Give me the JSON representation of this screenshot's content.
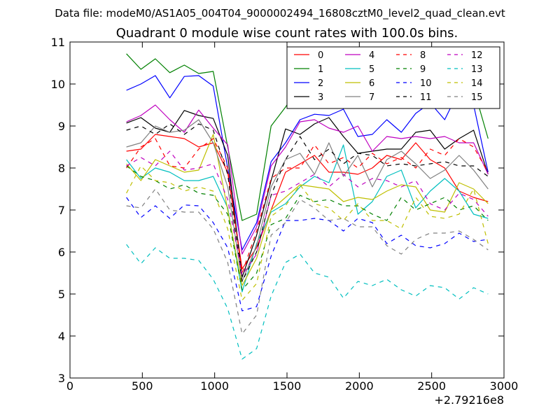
{
  "chart_data": {
    "type": "line",
    "suptitle": "Data file: modeM0/AS1A05_004T04_9000002494_16808cztM0_level2_quad_clean.evt",
    "title": "Quadrant 0 module wise count rates with 100.0s bins.",
    "xlabel": "",
    "ylabel": "",
    "x_offset_label": "+2.79216e8",
    "xlim": [
      0,
      3000
    ],
    "ylim": [
      3,
      11
    ],
    "xticks": [
      0,
      500,
      1000,
      1500,
      2000,
      2500,
      3000
    ],
    "yticks": [
      3,
      4,
      5,
      6,
      7,
      8,
      9,
      10,
      11
    ],
    "grid": false,
    "legend_position": "top-right",
    "x": [
      390,
      490,
      590,
      690,
      790,
      890,
      990,
      1090,
      1190,
      1290,
      1390,
      1490,
      1590,
      1690,
      1790,
      1890,
      1990,
      2090,
      2190,
      2290,
      2390,
      2490,
      2590,
      2690,
      2790,
      2890
    ],
    "series": [
      {
        "name": "0",
        "color": "#ff0000",
        "dash": "solid",
        "values": [
          8.4,
          8.45,
          8.8,
          8.75,
          8.7,
          8.5,
          8.6,
          7.9,
          5.6,
          6.1,
          7.0,
          7.9,
          8.1,
          8.3,
          7.9,
          7.9,
          7.85,
          8.0,
          8.3,
          8.2,
          8.6,
          8.2,
          8.0,
          7.45,
          7.3,
          7.2
        ]
      },
      {
        "name": "1",
        "color": "#008000",
        "dash": "solid",
        "values": [
          10.72,
          10.35,
          10.6,
          10.27,
          10.45,
          10.25,
          10.3,
          8.5,
          6.75,
          6.9,
          9.0,
          9.45,
          9.95,
          9.85,
          10.05,
          10.0,
          9.8,
          9.85,
          9.85,
          9.7,
          9.8,
          9.7,
          9.9,
          9.95,
          9.9,
          8.7
        ]
      },
      {
        "name": "2",
        "color": "#0000ff",
        "dash": "solid",
        "values": [
          9.85,
          10.0,
          10.2,
          9.67,
          10.18,
          10.2,
          9.95,
          8.0,
          6.05,
          6.7,
          8.15,
          8.6,
          9.15,
          9.28,
          9.25,
          9.4,
          8.75,
          8.8,
          9.15,
          8.85,
          9.3,
          9.55,
          9.15,
          9.85,
          9.5,
          7.9
        ]
      },
      {
        "name": "3",
        "color": "#000000",
        "dash": "solid",
        "values": [
          9.07,
          9.2,
          8.95,
          8.85,
          9.37,
          9.25,
          9.18,
          8.3,
          5.4,
          6.4,
          7.7,
          8.93,
          8.8,
          9.05,
          9.2,
          8.75,
          8.35,
          8.4,
          8.45,
          8.45,
          8.85,
          8.9,
          8.45,
          8.7,
          8.9,
          7.85
        ]
      },
      {
        "name": "4",
        "color": "#bf00bf",
        "dash": "solid",
        "values": [
          9.1,
          9.25,
          9.5,
          9.15,
          8.85,
          9.38,
          8.95,
          8.55,
          5.95,
          6.6,
          8.05,
          8.5,
          9.1,
          9.15,
          8.95,
          8.85,
          9.0,
          8.4,
          8.75,
          8.7,
          8.75,
          8.7,
          8.75,
          8.6,
          8.6,
          7.85
        ]
      },
      {
        "name": "5",
        "color": "#00bfbf",
        "dash": "solid",
        "values": [
          8.2,
          7.75,
          8.0,
          7.9,
          7.7,
          7.7,
          7.8,
          7.05,
          5.05,
          6.2,
          6.95,
          7.15,
          7.55,
          7.8,
          7.65,
          8.55,
          6.9,
          7.2,
          7.8,
          7.95,
          7.05,
          7.45,
          7.75,
          7.45,
          6.9,
          6.8
        ]
      },
      {
        "name": "6",
        "color": "#bfbf00",
        "dash": "solid",
        "values": [
          8.1,
          7.7,
          8.2,
          8.05,
          7.9,
          7.95,
          8.8,
          7.0,
          5.2,
          5.85,
          7.0,
          7.3,
          7.6,
          7.55,
          7.5,
          7.2,
          7.3,
          7.25,
          7.45,
          7.6,
          7.55,
          7.0,
          6.95,
          7.65,
          7.5,
          7.15
        ]
      },
      {
        "name": "7",
        "color": "#808080",
        "dash": "solid",
        "values": [
          8.5,
          8.6,
          9.0,
          8.85,
          8.9,
          9.15,
          8.6,
          7.55,
          5.3,
          6.15,
          7.55,
          8.2,
          8.35,
          7.85,
          8.6,
          7.8,
          8.3,
          7.55,
          8.2,
          8.4,
          8.1,
          7.75,
          7.95,
          8.3,
          7.95,
          7.5
        ]
      },
      {
        "name": "8",
        "color": "#ff0000",
        "dash": "dashed",
        "values": [
          8.0,
          8.5,
          8.7,
          8.05,
          8.0,
          8.45,
          8.7,
          8.0,
          5.5,
          6.5,
          7.75,
          8.0,
          8.0,
          8.55,
          8.1,
          8.25,
          8.0,
          8.35,
          8.1,
          8.25,
          8.0,
          8.45,
          8.3,
          8.7,
          8.5,
          7.9
        ]
      },
      {
        "name": "9",
        "color": "#008000",
        "dash": "dashed",
        "values": [
          8.05,
          7.8,
          7.7,
          7.5,
          7.6,
          7.4,
          7.35,
          6.9,
          5.1,
          5.5,
          6.65,
          6.8,
          7.35,
          7.2,
          7.25,
          7.1,
          7.1,
          6.9,
          6.75,
          7.3,
          7.0,
          7.15,
          7.3,
          7.0,
          7.1,
          6.75
        ]
      },
      {
        "name": "10",
        "color": "#0000ff",
        "dash": "dashed",
        "values": [
          7.3,
          6.82,
          7.1,
          6.8,
          7.12,
          7.1,
          6.7,
          6.1,
          4.6,
          4.7,
          5.9,
          6.75,
          6.75,
          6.8,
          6.75,
          6.5,
          6.8,
          6.7,
          6.2,
          6.4,
          6.15,
          6.1,
          6.2,
          6.45,
          6.25,
          6.3
        ]
      },
      {
        "name": "11",
        "color": "#000000",
        "dash": "dashed",
        "values": [
          8.9,
          9.0,
          8.8,
          9.05,
          8.8,
          9.05,
          8.9,
          7.85,
          5.3,
          6.0,
          7.35,
          8.2,
          8.75,
          8.2,
          8.45,
          8.1,
          8.35,
          8.3,
          8.05,
          8.1,
          8.05,
          8.1,
          8.15,
          8.05,
          8.05,
          7.8
        ]
      },
      {
        "name": "12",
        "color": "#bf00bf",
        "dash": "dashed",
        "values": [
          8.05,
          8.25,
          8.05,
          8.4,
          7.95,
          8.0,
          8.1,
          7.25,
          5.45,
          5.95,
          7.35,
          7.45,
          7.65,
          7.85,
          7.55,
          7.85,
          7.55,
          7.75,
          7.7,
          7.55,
          7.7,
          7.15,
          7.0,
          7.4,
          7.25,
          6.85
        ]
      },
      {
        "name": "13",
        "color": "#00bfbf",
        "dash": "dashed",
        "values": [
          6.18,
          5.72,
          6.1,
          5.85,
          5.85,
          5.8,
          5.35,
          4.65,
          3.45,
          3.7,
          4.95,
          5.75,
          5.95,
          5.5,
          5.4,
          4.9,
          5.3,
          5.2,
          5.35,
          5.1,
          4.95,
          5.2,
          5.15,
          4.88,
          5.15,
          5.0
        ]
      },
      {
        "name": "14",
        "color": "#bfbf00",
        "dash": "dashed",
        "values": [
          7.4,
          8.05,
          7.7,
          7.65,
          7.45,
          7.55,
          7.45,
          6.55,
          4.85,
          5.25,
          6.85,
          7.1,
          7.6,
          7.15,
          7.05,
          6.75,
          7.15,
          6.75,
          6.75,
          6.55,
          7.3,
          6.85,
          6.8,
          6.9,
          7.5,
          6.2
        ]
      },
      {
        "name": "15",
        "color": "#808080",
        "dash": "dashed",
        "values": [
          7.1,
          7.05,
          7.5,
          7.0,
          6.95,
          6.95,
          6.55,
          5.75,
          4.05,
          4.5,
          6.4,
          6.7,
          7.25,
          7.05,
          6.75,
          6.8,
          6.6,
          6.6,
          6.15,
          5.95,
          6.3,
          6.45,
          6.45,
          6.5,
          6.3,
          6.05
        ]
      }
    ]
  }
}
